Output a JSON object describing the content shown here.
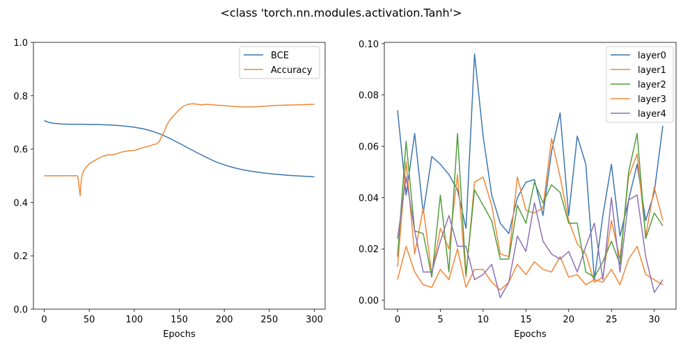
{
  "suptitle": "<class 'torch.nn.modules.activation.Tanh'>",
  "colors": {
    "blue": "#3b75af",
    "orange": "#ef8636",
    "green": "#519e3e",
    "purple": "#8d6fb5"
  },
  "chart_data": [
    {
      "type": "line",
      "xlabel": "Epochs",
      "ylabel": "",
      "xlim": [
        -12,
        312
      ],
      "ylim": [
        0.0,
        1.0
      ],
      "xticks": [
        0,
        50,
        100,
        150,
        200,
        250,
        300
      ],
      "yticks": [
        0.0,
        0.2,
        0.4,
        0.6,
        0.8,
        1.0
      ],
      "ytick_labels": [
        "0.0",
        "0.2",
        "0.4",
        "0.6",
        "0.8",
        "1.0"
      ],
      "grid": false,
      "legend": "top-right",
      "series": [
        {
          "name": "BCE",
          "color": "#3b75af",
          "x": [
            0,
            5,
            10,
            20,
            30,
            40,
            50,
            60,
            70,
            80,
            90,
            100,
            110,
            120,
            130,
            140,
            150,
            160,
            170,
            180,
            190,
            200,
            210,
            220,
            230,
            240,
            250,
            260,
            270,
            280,
            290,
            300
          ],
          "y": [
            0.707,
            0.7,
            0.697,
            0.694,
            0.693,
            0.693,
            0.692,
            0.692,
            0.691,
            0.689,
            0.686,
            0.682,
            0.676,
            0.667,
            0.655,
            0.639,
            0.622,
            0.604,
            0.586,
            0.569,
            0.553,
            0.541,
            0.531,
            0.523,
            0.517,
            0.512,
            0.508,
            0.505,
            0.502,
            0.5,
            0.498,
            0.496
          ]
        },
        {
          "name": "Accuracy",
          "color": "#ef8636",
          "x": [
            0,
            10,
            20,
            30,
            37,
            38,
            39,
            40,
            41,
            42,
            44,
            46,
            48,
            50,
            55,
            60,
            65,
            70,
            75,
            80,
            85,
            90,
            95,
            100,
            105,
            110,
            115,
            120,
            125,
            128,
            131,
            134,
            137,
            140,
            145,
            150,
            155,
            160,
            165,
            170,
            175,
            180,
            190,
            200,
            210,
            220,
            230,
            240,
            250,
            260,
            270,
            280,
            290,
            300
          ],
          "y": [
            0.5,
            0.5,
            0.5,
            0.5,
            0.5,
            0.48,
            0.45,
            0.425,
            0.48,
            0.5,
            0.52,
            0.53,
            0.538,
            0.545,
            0.555,
            0.565,
            0.573,
            0.578,
            0.578,
            0.582,
            0.588,
            0.592,
            0.594,
            0.595,
            0.6,
            0.606,
            0.61,
            0.615,
            0.62,
            0.63,
            0.65,
            0.672,
            0.695,
            0.712,
            0.73,
            0.748,
            0.762,
            0.768,
            0.77,
            0.768,
            0.766,
            0.768,
            0.765,
            0.763,
            0.76,
            0.758,
            0.758,
            0.76,
            0.762,
            0.764,
            0.765,
            0.766,
            0.767,
            0.768
          ]
        }
      ]
    },
    {
      "type": "line",
      "xlabel": "Epochs",
      "ylabel": "",
      "xlim": [
        -1.55,
        32.55
      ],
      "ylim": [
        -0.0035,
        0.1005
      ],
      "xticks": [
        0,
        5,
        10,
        15,
        20,
        25,
        30
      ],
      "yticks": [
        0.0,
        0.02,
        0.04,
        0.06,
        0.08,
        0.1
      ],
      "ytick_labels": [
        "0.00",
        "0.02",
        "0.04",
        "0.06",
        "0.08",
        "0.10"
      ],
      "grid": false,
      "legend": "top-right",
      "x": [
        0,
        1,
        2,
        3,
        4,
        5,
        6,
        7,
        8,
        9,
        10,
        11,
        12,
        13,
        14,
        15,
        16,
        17,
        18,
        19,
        20,
        21,
        22,
        23,
        24,
        25,
        26,
        27,
        28,
        29,
        30,
        31
      ],
      "series": [
        {
          "name": "layer0",
          "color": "#3b75af",
          "values": [
            0.074,
            0.041,
            0.065,
            0.034,
            0.056,
            0.053,
            0.049,
            0.043,
            0.028,
            0.096,
            0.064,
            0.041,
            0.03,
            0.026,
            0.04,
            0.046,
            0.047,
            0.033,
            0.058,
            0.073,
            0.033,
            0.064,
            0.053,
            0.008,
            0.033,
            0.053,
            0.025,
            0.039,
            0.053,
            0.031,
            0.042,
            0.068
          ]
        },
        {
          "name": "layer1",
          "color": "#ef8636",
          "values": [
            0.013,
            0.054,
            0.018,
            0.036,
            0.01,
            0.028,
            0.02,
            0.049,
            0.009,
            0.046,
            0.048,
            0.037,
            0.018,
            0.017,
            0.048,
            0.035,
            0.034,
            0.036,
            0.063,
            0.048,
            0.031,
            0.022,
            0.018,
            0.007,
            0.009,
            0.031,
            0.016,
            0.048,
            0.057,
            0.025,
            0.044,
            0.031
          ]
        },
        {
          "name": "layer2",
          "color": "#519e3e",
          "values": [
            0.017,
            0.062,
            0.027,
            0.026,
            0.009,
            0.041,
            0.011,
            0.065,
            0.01,
            0.043,
            0.037,
            0.031,
            0.016,
            0.016,
            0.037,
            0.03,
            0.046,
            0.038,
            0.045,
            0.042,
            0.03,
            0.03,
            0.011,
            0.009,
            0.015,
            0.023,
            0.014,
            0.05,
            0.065,
            0.024,
            0.034,
            0.029
          ]
        },
        {
          "name": "layer3",
          "color": "#ef8636",
          "values": [
            0.008,
            0.021,
            0.011,
            0.006,
            0.005,
            0.012,
            0.008,
            0.02,
            0.005,
            0.012,
            0.012,
            0.007,
            0.004,
            0.007,
            0.014,
            0.01,
            0.015,
            0.012,
            0.011,
            0.017,
            0.009,
            0.01,
            0.006,
            0.008,
            0.007,
            0.012,
            0.006,
            0.016,
            0.021,
            0.01,
            0.008,
            0.006
          ]
        },
        {
          "name": "layer4",
          "color": "#8d6fb5",
          "values": [
            0.024,
            0.048,
            0.027,
            0.011,
            0.011,
            0.023,
            0.033,
            0.021,
            0.021,
            0.008,
            0.01,
            0.014,
            0.001,
            0.007,
            0.025,
            0.019,
            0.038,
            0.023,
            0.018,
            0.016,
            0.019,
            0.011,
            0.021,
            0.03,
            0.008,
            0.04,
            0.011,
            0.039,
            0.041,
            0.017,
            0.003,
            0.008
          ]
        }
      ]
    }
  ]
}
